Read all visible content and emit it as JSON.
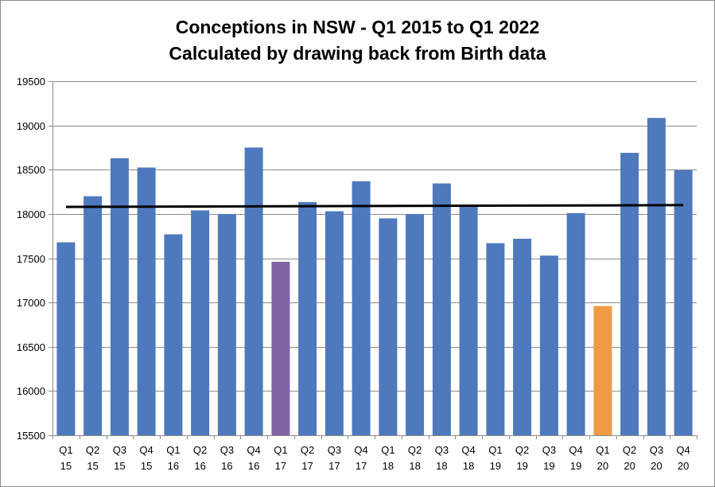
{
  "chart_data": {
    "type": "bar",
    "title": "Conceptions in NSW - Q1 2015 to Q1 2022",
    "subtitle": "Calculated by drawing back from Birth data",
    "xlabel": "",
    "ylabel": "",
    "ylim": [
      15500,
      19500
    ],
    "yticks": [
      15500,
      16000,
      16500,
      17000,
      17500,
      18000,
      18500,
      19000,
      19500
    ],
    "grid": true,
    "categories": [
      {
        "q": "Q1",
        "y": "15"
      },
      {
        "q": "Q2",
        "y": "15"
      },
      {
        "q": "Q3",
        "y": "15"
      },
      {
        "q": "Q4",
        "y": "15"
      },
      {
        "q": "Q1",
        "y": "16"
      },
      {
        "q": "Q2",
        "y": "16"
      },
      {
        "q": "Q3",
        "y": "16"
      },
      {
        "q": "Q4",
        "y": "16"
      },
      {
        "q": "Q1",
        "y": "17"
      },
      {
        "q": "Q2",
        "y": "17"
      },
      {
        "q": "Q3",
        "y": "17"
      },
      {
        "q": "Q4",
        "y": "17"
      },
      {
        "q": "Q1",
        "y": "18"
      },
      {
        "q": "Q2",
        "y": "18"
      },
      {
        "q": "Q3",
        "y": "18"
      },
      {
        "q": "Q4",
        "y": "18"
      },
      {
        "q": "Q1",
        "y": "19"
      },
      {
        "q": "Q2",
        "y": "19"
      },
      {
        "q": "Q3",
        "y": "19"
      },
      {
        "q": "Q4",
        "y": "19"
      },
      {
        "q": "Q1",
        "y": "20"
      },
      {
        "q": "Q2",
        "y": "20"
      },
      {
        "q": "Q3",
        "y": "20"
      },
      {
        "q": "Q4",
        "y": "20"
      }
    ],
    "values": [
      17680,
      18200,
      18630,
      18525,
      17770,
      18040,
      18000,
      18750,
      17460,
      18135,
      18030,
      18370,
      17950,
      18000,
      18345,
      18085,
      17670,
      17720,
      17530,
      18010,
      16960,
      18690,
      19085,
      18495
    ],
    "bar_colors": [
      "#4f79bd",
      "#4f79bd",
      "#4f79bd",
      "#4f79bd",
      "#4f79bd",
      "#4f79bd",
      "#4f79bd",
      "#4f79bd",
      "#8063a3",
      "#4f79bd",
      "#4f79bd",
      "#4f79bd",
      "#4f79bd",
      "#4f79bd",
      "#4f79bd",
      "#4f79bd",
      "#4f79bd",
      "#4f79bd",
      "#4f79bd",
      "#4f79bd",
      "#f09a46",
      "#4f79bd",
      "#4f79bd",
      "#4f79bd"
    ],
    "trendline": {
      "start": 18080,
      "end": 18100,
      "color": "#000000"
    },
    "colors": {
      "grid": "#8c8c8c",
      "axis": "#8c8c8c"
    }
  }
}
